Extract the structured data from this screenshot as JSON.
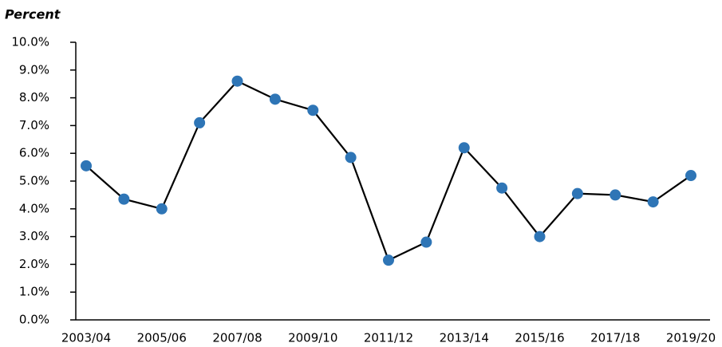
{
  "chart_data": {
    "type": "line",
    "title": "Percent",
    "categories": [
      "2003/04",
      null,
      "2005/06",
      null,
      "2007/08",
      null,
      "2009/10",
      null,
      "2011/12",
      null,
      "2013/14",
      null,
      "2015/16",
      null,
      "2017/18",
      null,
      "2019/20"
    ],
    "series": [
      {
        "color": "#2e75b6",
        "line_color": "#000000",
        "values": [
          5.55,
          4.35,
          4.0,
          7.1,
          8.6,
          7.95,
          7.55,
          5.85,
          2.15,
          2.8,
          6.2,
          4.75,
          3.0,
          4.55,
          4.5,
          4.25,
          5.2
        ]
      }
    ],
    "ylim": [
      0,
      10
    ],
    "yticks": [
      {
        "value": 0,
        "label": "0.0%"
      },
      {
        "value": 1,
        "label": "1.0%"
      },
      {
        "value": 2,
        "label": "2.0%"
      },
      {
        "value": 3,
        "label": "3.0%"
      },
      {
        "value": 4,
        "label": "4.0%"
      },
      {
        "value": 5,
        "label": "5.0%"
      },
      {
        "value": 6,
        "label": "6.0%"
      },
      {
        "value": 7,
        "label": "7.0%"
      },
      {
        "value": 8,
        "label": "8.0%"
      },
      {
        "value": 9,
        "label": "9.0%"
      },
      {
        "value": 10,
        "label": "10.0%"
      }
    ],
    "grid": false
  }
}
